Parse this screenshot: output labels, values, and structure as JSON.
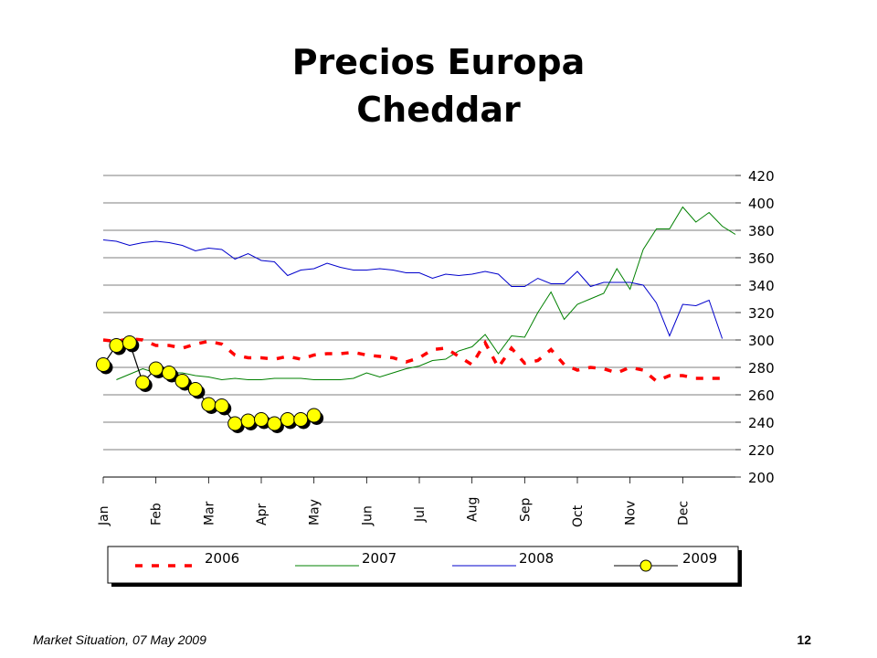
{
  "chart_data": {
    "type": "line",
    "title": "Precios Europa",
    "subtitle": "Cheddar",
    "xlabel": "",
    "ylabel": "",
    "ylim": [
      200,
      420
    ],
    "yticks": [
      200,
      220,
      240,
      260,
      280,
      300,
      320,
      340,
      360,
      380,
      400,
      420
    ],
    "y_axis_side": "right",
    "grid": true,
    "legend_position": "bottom",
    "months": [
      "Jan",
      "Feb",
      "Mar",
      "Apr",
      "May",
      "Jun",
      "Jul",
      "Aug",
      "Sep",
      "Oct",
      "Nov",
      "Dec"
    ],
    "series": [
      {
        "name": "2006",
        "color": "#ff0000",
        "style": "dashed",
        "x": [
          0,
          0.25,
          0.5,
          0.75,
          1,
          1.25,
          1.5,
          1.75,
          2,
          2.25,
          2.5,
          2.75,
          3,
          3.25,
          3.5,
          3.75,
          4,
          4.25,
          4.5,
          4.75,
          5,
          5.25,
          5.5,
          5.75,
          6,
          6.25,
          6.5,
          6.75,
          7,
          7.25,
          7.5,
          7.75,
          8,
          8.25,
          8.5,
          8.75,
          9,
          9.25,
          9.5,
          9.75,
          10,
          10.25,
          10.5,
          10.75,
          11,
          11.25,
          11.5,
          11.75
        ],
        "values": [
          300,
          299,
          301,
          300,
          296,
          296,
          294,
          297,
          299,
          297,
          289,
          287,
          287,
          286,
          288,
          286,
          289,
          290,
          290,
          291,
          289,
          288,
          287,
          284,
          287,
          293,
          294,
          288,
          282,
          298,
          280,
          294,
          283,
          285,
          293,
          282,
          278,
          280,
          279,
          276,
          280,
          278,
          270,
          274,
          274,
          272,
          272,
          272
        ]
      },
      {
        "name": "2007",
        "color": "#008000",
        "style": "solid",
        "x": [
          0.25,
          0.5,
          0.75,
          1,
          1.25,
          1.5,
          1.75,
          2,
          2.25,
          2.5,
          2.75,
          3,
          3.25,
          3.5,
          3.75,
          4,
          4.25,
          4.5,
          4.75,
          5,
          5.25,
          5.5,
          5.75,
          6,
          6.25,
          6.5,
          6.75,
          7,
          7.25,
          7.5,
          7.75,
          8,
          8.25,
          8.5,
          8.75,
          9,
          9.25,
          9.5,
          9.75,
          10,
          10.25,
          10.5,
          10.75,
          11,
          11.25,
          11.5,
          11.75,
          12
        ],
        "values": [
          271,
          275,
          279,
          276,
          276,
          276,
          274,
          273,
          271,
          272,
          271,
          271,
          272,
          272,
          272,
          271,
          271,
          271,
          272,
          276,
          273,
          276,
          279,
          281,
          285,
          286,
          292,
          295,
          304,
          290,
          303,
          302,
          320,
          335,
          315,
          326,
          330,
          334,
          352,
          337,
          366,
          381,
          381,
          397,
          386,
          393,
          383,
          377
        ]
      },
      {
        "name": "2008",
        "color": "#0000cc",
        "style": "solid",
        "x": [
          0,
          0.25,
          0.5,
          0.75,
          1,
          1.25,
          1.5,
          1.75,
          2,
          2.25,
          2.5,
          2.75,
          3,
          3.25,
          3.5,
          3.75,
          4,
          4.25,
          4.5,
          4.75,
          5,
          5.25,
          5.5,
          5.75,
          6,
          6.25,
          6.5,
          6.75,
          7,
          7.25,
          7.5,
          7.75,
          8,
          8.25,
          8.5,
          8.75,
          9,
          9.25,
          9.5,
          9.75,
          10,
          10.25,
          10.5,
          10.75,
          11,
          11.25,
          11.5,
          11.75
        ],
        "values": [
          373,
          372,
          369,
          371,
          372,
          371,
          369,
          365,
          367,
          366,
          359,
          363,
          358,
          357,
          347,
          351,
          352,
          356,
          353,
          351,
          351,
          352,
          351,
          349,
          349,
          345,
          348,
          347,
          348,
          350,
          348,
          339,
          339,
          345,
          341,
          341,
          350,
          339,
          342,
          342,
          342,
          340,
          327,
          303,
          326,
          325,
          329,
          301
        ]
      },
      {
        "name": "2009",
        "color": "#000000",
        "marker_color": "#ffff00",
        "style": "solid-markers",
        "x": [
          0,
          0.25,
          0.5,
          0.75,
          1,
          1.25,
          1.5,
          1.75,
          2,
          2.25,
          2.5,
          2.75,
          3,
          3.25,
          3.5,
          3.75,
          4
        ],
        "values": [
          282,
          296,
          298,
          269,
          279,
          276,
          270,
          264,
          253,
          252,
          239,
          241,
          242,
          239,
          242,
          242,
          245
        ]
      }
    ]
  },
  "footer": {
    "left": "Market Situation, 07 May 2009",
    "page": "12"
  }
}
